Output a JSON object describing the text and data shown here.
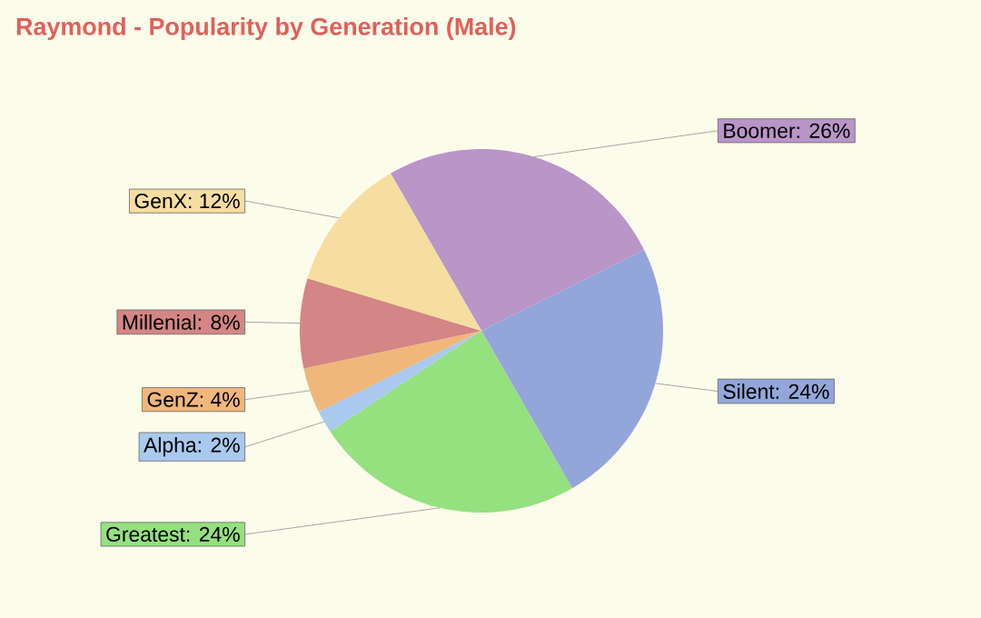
{
  "chart_data": {
    "type": "pie",
    "title": "Raymond - Popularity by Generation (Male)",
    "categories": [
      "Boomer",
      "Silent",
      "Greatest",
      "Alpha",
      "GenZ",
      "Millenial",
      "GenX"
    ],
    "values": [
      26,
      24,
      24,
      2,
      4,
      8,
      12
    ],
    "colors": [
      "#b995c8",
      "#92a6d9",
      "#95e07f",
      "#a9c9ee",
      "#f0b77a",
      "#d48585",
      "#f5dea0"
    ],
    "value_labels": [
      ": 26%",
      ": 24%",
      ": 24%",
      ": 2%",
      ": 4%",
      ": 8%",
      ": 12%"
    ]
  }
}
